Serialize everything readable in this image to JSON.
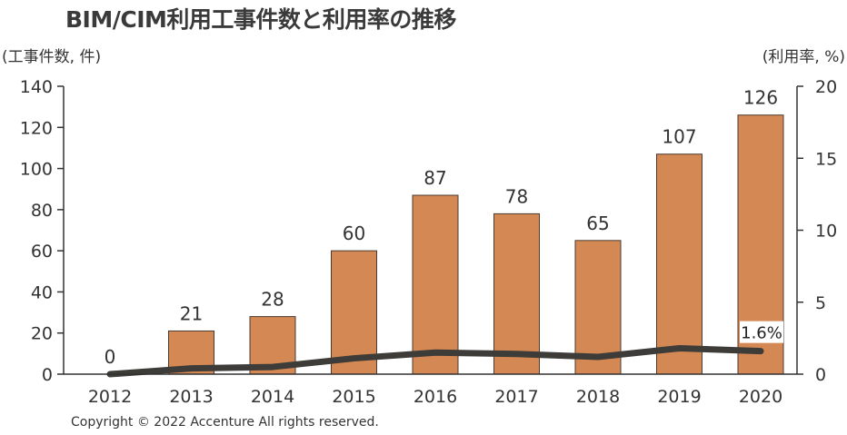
{
  "chart_data": {
    "type": "bar",
    "title": "BIM/CIM利用工事件数と利用率の推移",
    "ylabel": "(工事件数, 件)",
    "y2label": "(利用率, %)",
    "categories": [
      "2012",
      "2013",
      "2014",
      "2015",
      "2016",
      "2017",
      "2018",
      "2019",
      "2020"
    ],
    "ylim": [
      0,
      140
    ],
    "yticks": [
      0,
      20,
      40,
      60,
      80,
      100,
      120,
      140
    ],
    "y2lim": [
      0,
      20
    ],
    "y2ticks": [
      0,
      5,
      10,
      15,
      20
    ],
    "series": [
      {
        "name": "工事件数",
        "type": "bar",
        "axis": "left",
        "values": [
          0,
          21,
          28,
          60,
          87,
          78,
          65,
          107,
          126
        ],
        "labels": [
          "0",
          "21",
          "28",
          "60",
          "87",
          "78",
          "65",
          "107",
          "126"
        ],
        "color": "#d48853"
      },
      {
        "name": "利用率",
        "type": "line",
        "axis": "right",
        "values": [
          0.0,
          0.4,
          0.5,
          1.1,
          1.5,
          1.4,
          1.2,
          1.8,
          1.6
        ],
        "color": "#3d3c38"
      }
    ],
    "annotations": [
      {
        "category": "2020",
        "series": "利用率",
        "text": "1.6%"
      }
    ],
    "grid": false
  },
  "copyright": "Copyright © 2022 Accenture All rights reserved."
}
